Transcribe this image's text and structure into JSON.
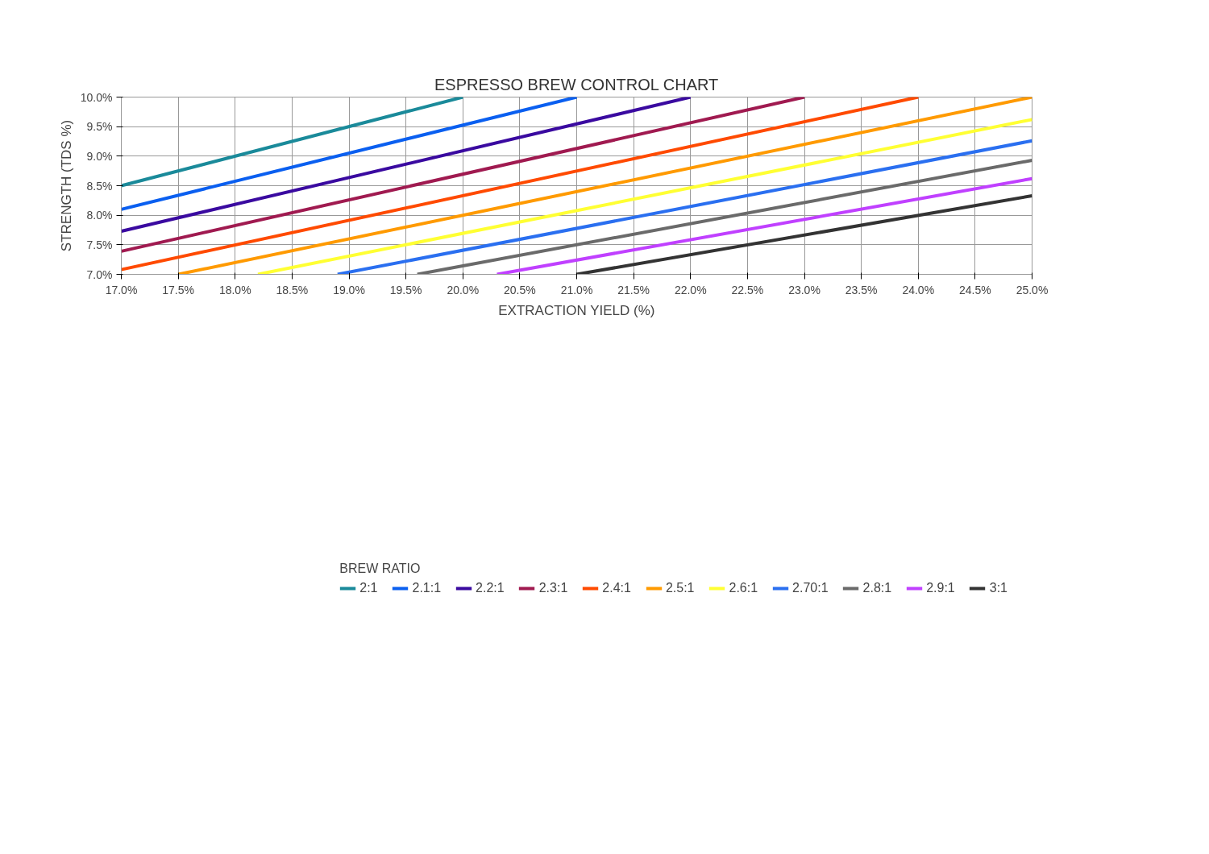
{
  "chart_data": {
    "type": "line",
    "title": "ESPRESSO BREW CONTROL CHART",
    "xlabel": "EXTRACTION YIELD (%)",
    "ylabel": "STRENGTH (TDS %)",
    "legend_title": "BREW RATIO",
    "legend": "bottom",
    "grid": true,
    "xlim": [
      17,
      25
    ],
    "ylim": [
      7,
      10
    ],
    "xticks": [
      {
        "value": 17,
        "label": "17.0%"
      },
      {
        "value": 17.5,
        "label": "17.5%"
      },
      {
        "value": 18,
        "label": "18.0%"
      },
      {
        "value": 18.5,
        "label": "18.5%"
      },
      {
        "value": 19,
        "label": "19.0%"
      },
      {
        "value": 19.5,
        "label": "19.5%"
      },
      {
        "value": 20,
        "label": "20.0%"
      },
      {
        "value": 20.5,
        "label": "20.5%"
      },
      {
        "value": 21,
        "label": "21.0%"
      },
      {
        "value": 21.5,
        "label": "21.5%"
      },
      {
        "value": 22,
        "label": "22.0%"
      },
      {
        "value": 22.5,
        "label": "22.5%"
      },
      {
        "value": 23,
        "label": "23.0%"
      },
      {
        "value": 23.5,
        "label": "23.5%"
      },
      {
        "value": 24,
        "label": "24.0%"
      },
      {
        "value": 24.5,
        "label": "24.5%"
      },
      {
        "value": 25,
        "label": "25.0%"
      }
    ],
    "yticks": [
      {
        "value": 7,
        "label": "7.0%"
      },
      {
        "value": 7.5,
        "label": "7.5%"
      },
      {
        "value": 8,
        "label": "8.0%"
      },
      {
        "value": 8.5,
        "label": "8.5%"
      },
      {
        "value": 9,
        "label": "9.0%"
      },
      {
        "value": 9.5,
        "label": "9.5%"
      },
      {
        "value": 10,
        "label": "10.0%"
      }
    ],
    "series": [
      {
        "name": "2:1",
        "color": "#1a8a9a",
        "x": [
          17,
          20
        ],
        "values": [
          8.5,
          10
        ]
      },
      {
        "name": "2.1:1",
        "color": "#0a5ff0",
        "x": [
          17,
          21
        ],
        "values": [
          8.1,
          10
        ]
      },
      {
        "name": "2.2:1",
        "color": "#3a0aa0",
        "x": [
          17,
          22
        ],
        "values": [
          7.73,
          10
        ]
      },
      {
        "name": "2.3:1",
        "color": "#a01a50",
        "x": [
          17,
          23
        ],
        "values": [
          7.39,
          10
        ]
      },
      {
        "name": "2.4:1",
        "color": "#ff4a00",
        "x": [
          17,
          24
        ],
        "values": [
          7.08,
          10
        ]
      },
      {
        "name": "2.5:1",
        "color": "#ff9a00",
        "x": [
          17.5,
          25
        ],
        "values": [
          7,
          10
        ]
      },
      {
        "name": "2.6:1",
        "color": "#ffff33",
        "x": [
          18.2,
          25
        ],
        "values": [
          7,
          9.62
        ]
      },
      {
        "name": "2.70:1",
        "color": "#2a6ff0",
        "x": [
          18.9,
          25
        ],
        "values": [
          7,
          9.26
        ]
      },
      {
        "name": "2.8:1",
        "color": "#6a6a6a",
        "x": [
          19.6,
          25
        ],
        "values": [
          7,
          8.93
        ]
      },
      {
        "name": "2.9:1",
        "color": "#c040ff",
        "x": [
          20.3,
          25
        ],
        "values": [
          7,
          8.62
        ]
      },
      {
        "name": "3:1",
        "color": "#333333",
        "x": [
          21,
          25
        ],
        "values": [
          7,
          8.33
        ]
      }
    ]
  }
}
